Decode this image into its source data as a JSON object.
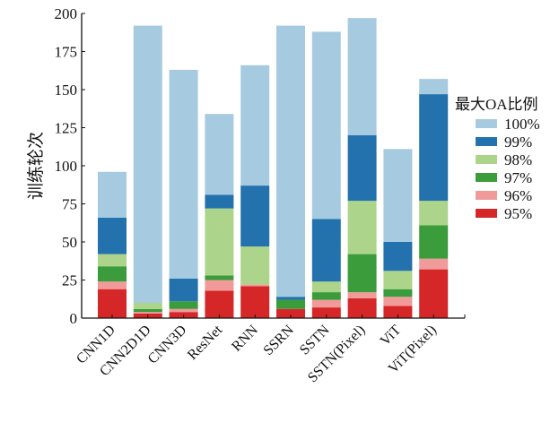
{
  "chart_data": {
    "type": "bar",
    "stacked": true,
    "ylabel": "训练轮次",
    "ylim": [
      0,
      200
    ],
    "yticks": [
      0,
      25,
      50,
      75,
      100,
      125,
      150,
      175,
      200
    ],
    "categories": [
      "CNN1D",
      "CNN2D1D",
      "CNN3D",
      "ResNet",
      "RNN",
      "SSRN",
      "SSTN",
      "SSTN(Pixel)",
      "ViT",
      "ViT(Pixel)"
    ],
    "legend_title": "最大OA比例",
    "legend_position": "right",
    "series": [
      {
        "name": "95%",
        "color": "#d62728",
        "values": [
          19,
          3,
          4,
          18,
          21,
          6,
          7,
          13,
          8,
          32
        ]
      },
      {
        "name": "96%",
        "color": "#f09a9a",
        "values": [
          5,
          1,
          2,
          7,
          1,
          0,
          5,
          4,
          6,
          7
        ]
      },
      {
        "name": "97%",
        "color": "#3a9c3a",
        "values": [
          10,
          2,
          5,
          3,
          0,
          6,
          5,
          25,
          5,
          22
        ]
      },
      {
        "name": "98%",
        "color": "#acd48a",
        "values": [
          8,
          4,
          0,
          44,
          25,
          0,
          7,
          35,
          12,
          16
        ]
      },
      {
        "name": "99%",
        "color": "#2372ae",
        "values": [
          24,
          0,
          15,
          9,
          40,
          2,
          41,
          43,
          19,
          70
        ]
      },
      {
        "name": "100%",
        "color": "#a6cbe0",
        "values": [
          30,
          182,
          137,
          53,
          79,
          178,
          123,
          77,
          61,
          10
        ]
      }
    ]
  }
}
